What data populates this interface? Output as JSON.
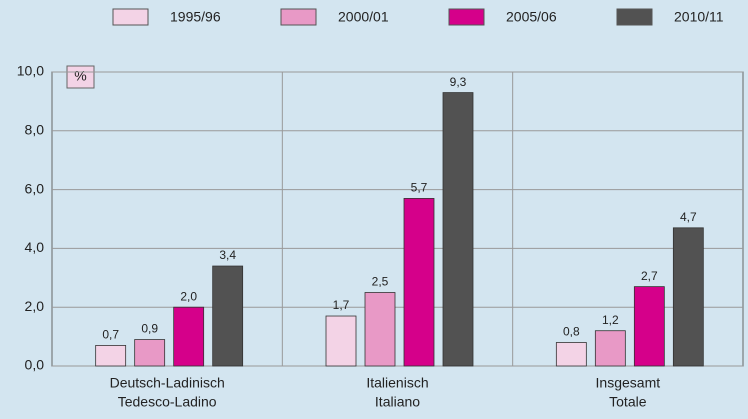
{
  "chart_data": {
    "type": "bar",
    "y_unit": "%",
    "categories": [
      [
        "Deutsch-Ladinisch",
        "Tedesco-Ladino"
      ],
      [
        "Italienisch",
        "Italiano"
      ],
      [
        "Insgesamt",
        "Totale"
      ]
    ],
    "series": [
      {
        "name": "1995/96",
        "color": "#f3d3e6",
        "values": [
          0.7,
          1.7,
          0.8
        ],
        "value_labels": [
          "0,7",
          "1,7",
          "0,8"
        ]
      },
      {
        "name": "2000/01",
        "color": "#e899c6",
        "values": [
          0.9,
          2.5,
          1.2
        ],
        "value_labels": [
          "0,9",
          "2,5",
          "1,2"
        ]
      },
      {
        "name": "2005/06",
        "color": "#d5008a",
        "values": [
          2.0,
          5.7,
          2.7
        ],
        "value_labels": [
          "2,0",
          "5,7",
          "2,7"
        ]
      },
      {
        "name": "2010/11",
        "color": "#525252",
        "values": [
          3.4,
          9.3,
          4.7
        ],
        "value_labels": [
          "3,4",
          "9,3",
          "4,7"
        ]
      }
    ],
    "ylim": [
      0,
      10
    ],
    "yticks": [
      {
        "value": 0,
        "label": "0,0"
      },
      {
        "value": 2,
        "label": "2,0"
      },
      {
        "value": 4,
        "label": "4,0"
      },
      {
        "value": 6,
        "label": "6,0"
      },
      {
        "value": 8,
        "label": "8,0"
      },
      {
        "value": 10,
        "label": "10,0"
      }
    ],
    "grid": true,
    "legend": "top"
  }
}
